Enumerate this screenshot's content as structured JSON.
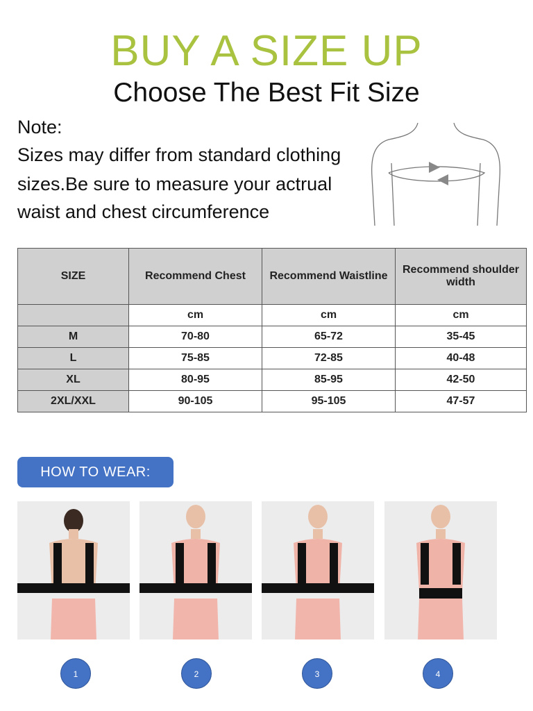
{
  "header": {
    "title": "BUY A SIZE UP",
    "subtitle": "Choose The Best Fit Size"
  },
  "note": {
    "label": "Note:",
    "lines": [
      "Sizes may differ from standard clothing",
      "sizes.Be sure to measure your actrual",
      "waist and chest circumference"
    ]
  },
  "size_table": {
    "headers": [
      "SIZE",
      "Recommend Chest",
      "Recommend Waistline",
      "Recommend shoulder width"
    ],
    "units": [
      "",
      "cm",
      "cm",
      "cm"
    ],
    "rows": [
      [
        "M",
        "70-80",
        "65-72",
        "35-45"
      ],
      [
        "L",
        "75-85",
        "72-85",
        "40-48"
      ],
      [
        "XL",
        "80-95",
        "85-95",
        "42-50"
      ],
      [
        "2XL/XXL",
        "90-105",
        "95-105",
        "47-57"
      ]
    ]
  },
  "how_to_wear": {
    "label": "HOW TO WEAR:",
    "steps": [
      "1",
      "2",
      "3",
      "4"
    ]
  },
  "colors": {
    "title": "#a9c23f",
    "accent": "#4472c4",
    "table_header": "#d0d0d0"
  }
}
